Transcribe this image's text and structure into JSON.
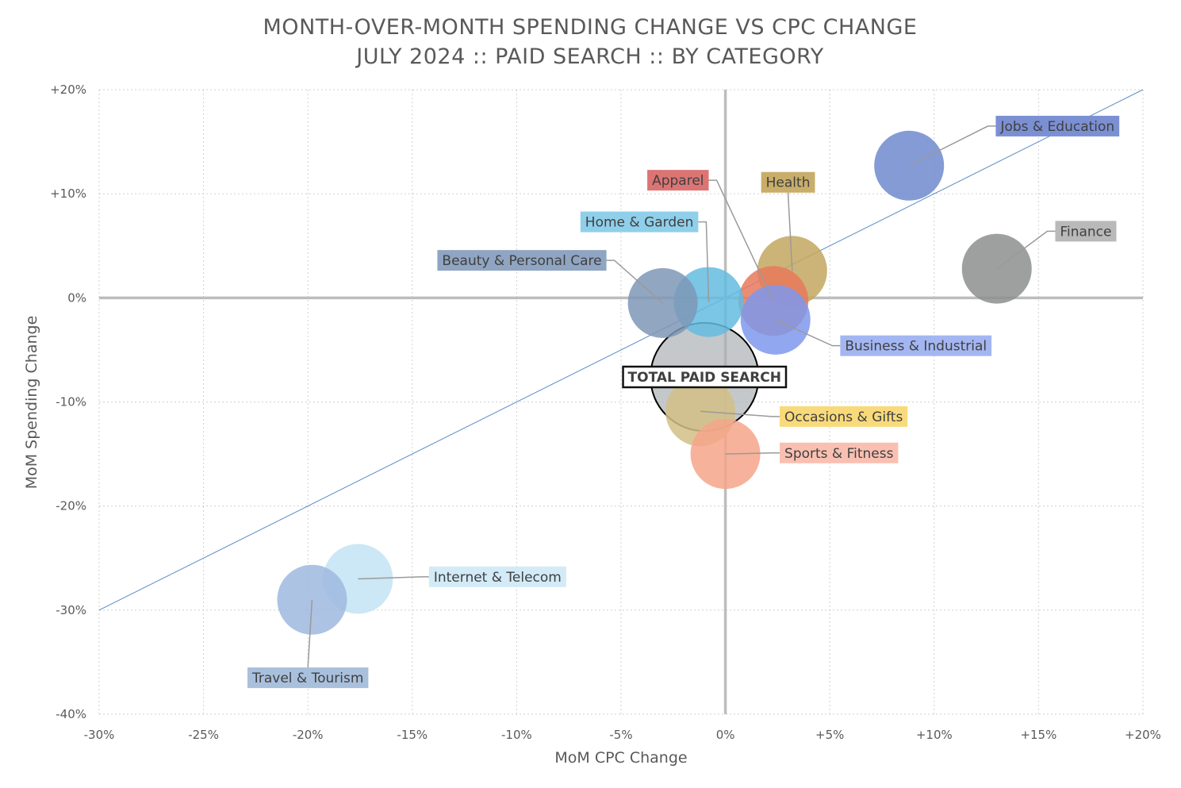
{
  "chart_data": {
    "type": "scatter",
    "title": "MONTH-OVER-MONTH SPENDING CHANGE VS CPC CHANGE",
    "subtitle": "JULY 2024 :: PAID SEARCH :: BY CATEGORY",
    "xlabel": "MoM CPC Change",
    "ylabel": "MoM Spending Change",
    "xlim": [
      -30,
      20
    ],
    "ylim": [
      -40,
      20
    ],
    "x_ticks": [
      -30,
      -25,
      -20,
      -15,
      -10,
      -5,
      0,
      5,
      10,
      15,
      20
    ],
    "x_tick_labels": [
      "-30%",
      "-25%",
      "-20%",
      "-15%",
      "-10%",
      "-5%",
      "0%",
      "+5%",
      "+10%",
      "+15%",
      "+20%"
    ],
    "y_ticks": [
      20,
      10,
      0,
      -10,
      -20,
      -30,
      -40
    ],
    "y_tick_labels": [
      "+20%",
      "+10%",
      "0%",
      "-10%",
      "-20%",
      "-30%",
      "-40%"
    ],
    "grid": true,
    "reference_line": [
      [
        -30,
        -30
      ],
      [
        20,
        20
      ]
    ],
    "series": [
      {
        "name": "Jobs & Education",
        "x": 8.8,
        "y": 12.7,
        "size": 1,
        "color": "#7089CF",
        "label_color": "#7B8FD3",
        "label_anchor": [
          12.95,
          16.5
        ],
        "label_pos": "right"
      },
      {
        "name": "Finance",
        "x": 13.0,
        "y": 2.8,
        "size": 1,
        "color": "#8C8F8E",
        "label_color": "#B9B9B9",
        "label_anchor": [
          15.8,
          6.4
        ],
        "label_pos": "right"
      },
      {
        "name": "Health",
        "x": 3.2,
        "y": 2.6,
        "size": 1,
        "color": "#C3A760",
        "label_color": "#C8AE6A",
        "label_anchor": [
          3.0,
          11.1
        ],
        "label_pos": "center"
      },
      {
        "name": "Apparel",
        "x": 2.3,
        "y": -0.3,
        "size": 1,
        "color": "#E8795C",
        "label_color": "#DC7474",
        "label_anchor": [
          -0.8,
          11.3
        ],
        "label_pos": "left"
      },
      {
        "name": "Home & Garden",
        "x": -0.8,
        "y": -0.4,
        "size": 1,
        "color": "#64BBE0",
        "label_color": "#8FCFEA",
        "label_anchor": [
          -1.3,
          7.3
        ],
        "label_pos": "left"
      },
      {
        "name": "Beauty & Personal Care",
        "x": -3.0,
        "y": -0.5,
        "size": 1,
        "color": "#7E96B6",
        "label_color": "#8FA5C2",
        "label_anchor": [
          -5.7,
          3.6
        ],
        "label_pos": "left"
      },
      {
        "name": "Business & Industrial",
        "x": 2.4,
        "y": -2.1,
        "size": 1,
        "color": "#7E98EC",
        "label_color": "#A3B6F2",
        "label_anchor": [
          5.5,
          -4.6
        ],
        "label_pos": "right"
      },
      {
        "name": "TOTAL PAID SEARCH",
        "x": -1.0,
        "y": -7.6,
        "size": 2.4,
        "color": "#ACB0B4",
        "label_color": "#FFFFFF",
        "label_anchor": [
          -1.0,
          -7.6
        ],
        "label_pos": "boxed"
      },
      {
        "name": "Occasions & Gifts",
        "x": -1.2,
        "y": -10.9,
        "size": 1,
        "color": "#D2BF86",
        "label_color": "#F9DA7B",
        "label_anchor": [
          2.6,
          -11.4
        ],
        "label_pos": "right"
      },
      {
        "name": "Sports & Fitness",
        "x": 0.0,
        "y": -15.0,
        "size": 1,
        "color": "#F6A48A",
        "label_color": "#F9C0B2",
        "label_anchor": [
          2.6,
          -14.9
        ],
        "label_pos": "right"
      },
      {
        "name": "Internet & Telecom",
        "x": -17.6,
        "y": -27.0,
        "size": 1,
        "color": "#C3E3F3",
        "label_color": "#D2EBF7",
        "label_anchor": [
          -14.2,
          -26.8
        ],
        "label_pos": "right"
      },
      {
        "name": "Travel & Tourism",
        "x": -19.8,
        "y": -29.0,
        "size": 1,
        "color": "#9DB8DE",
        "label_color": "#A9C0DD",
        "label_anchor": [
          -20.0,
          -36.5
        ],
        "label_pos": "center"
      }
    ]
  }
}
